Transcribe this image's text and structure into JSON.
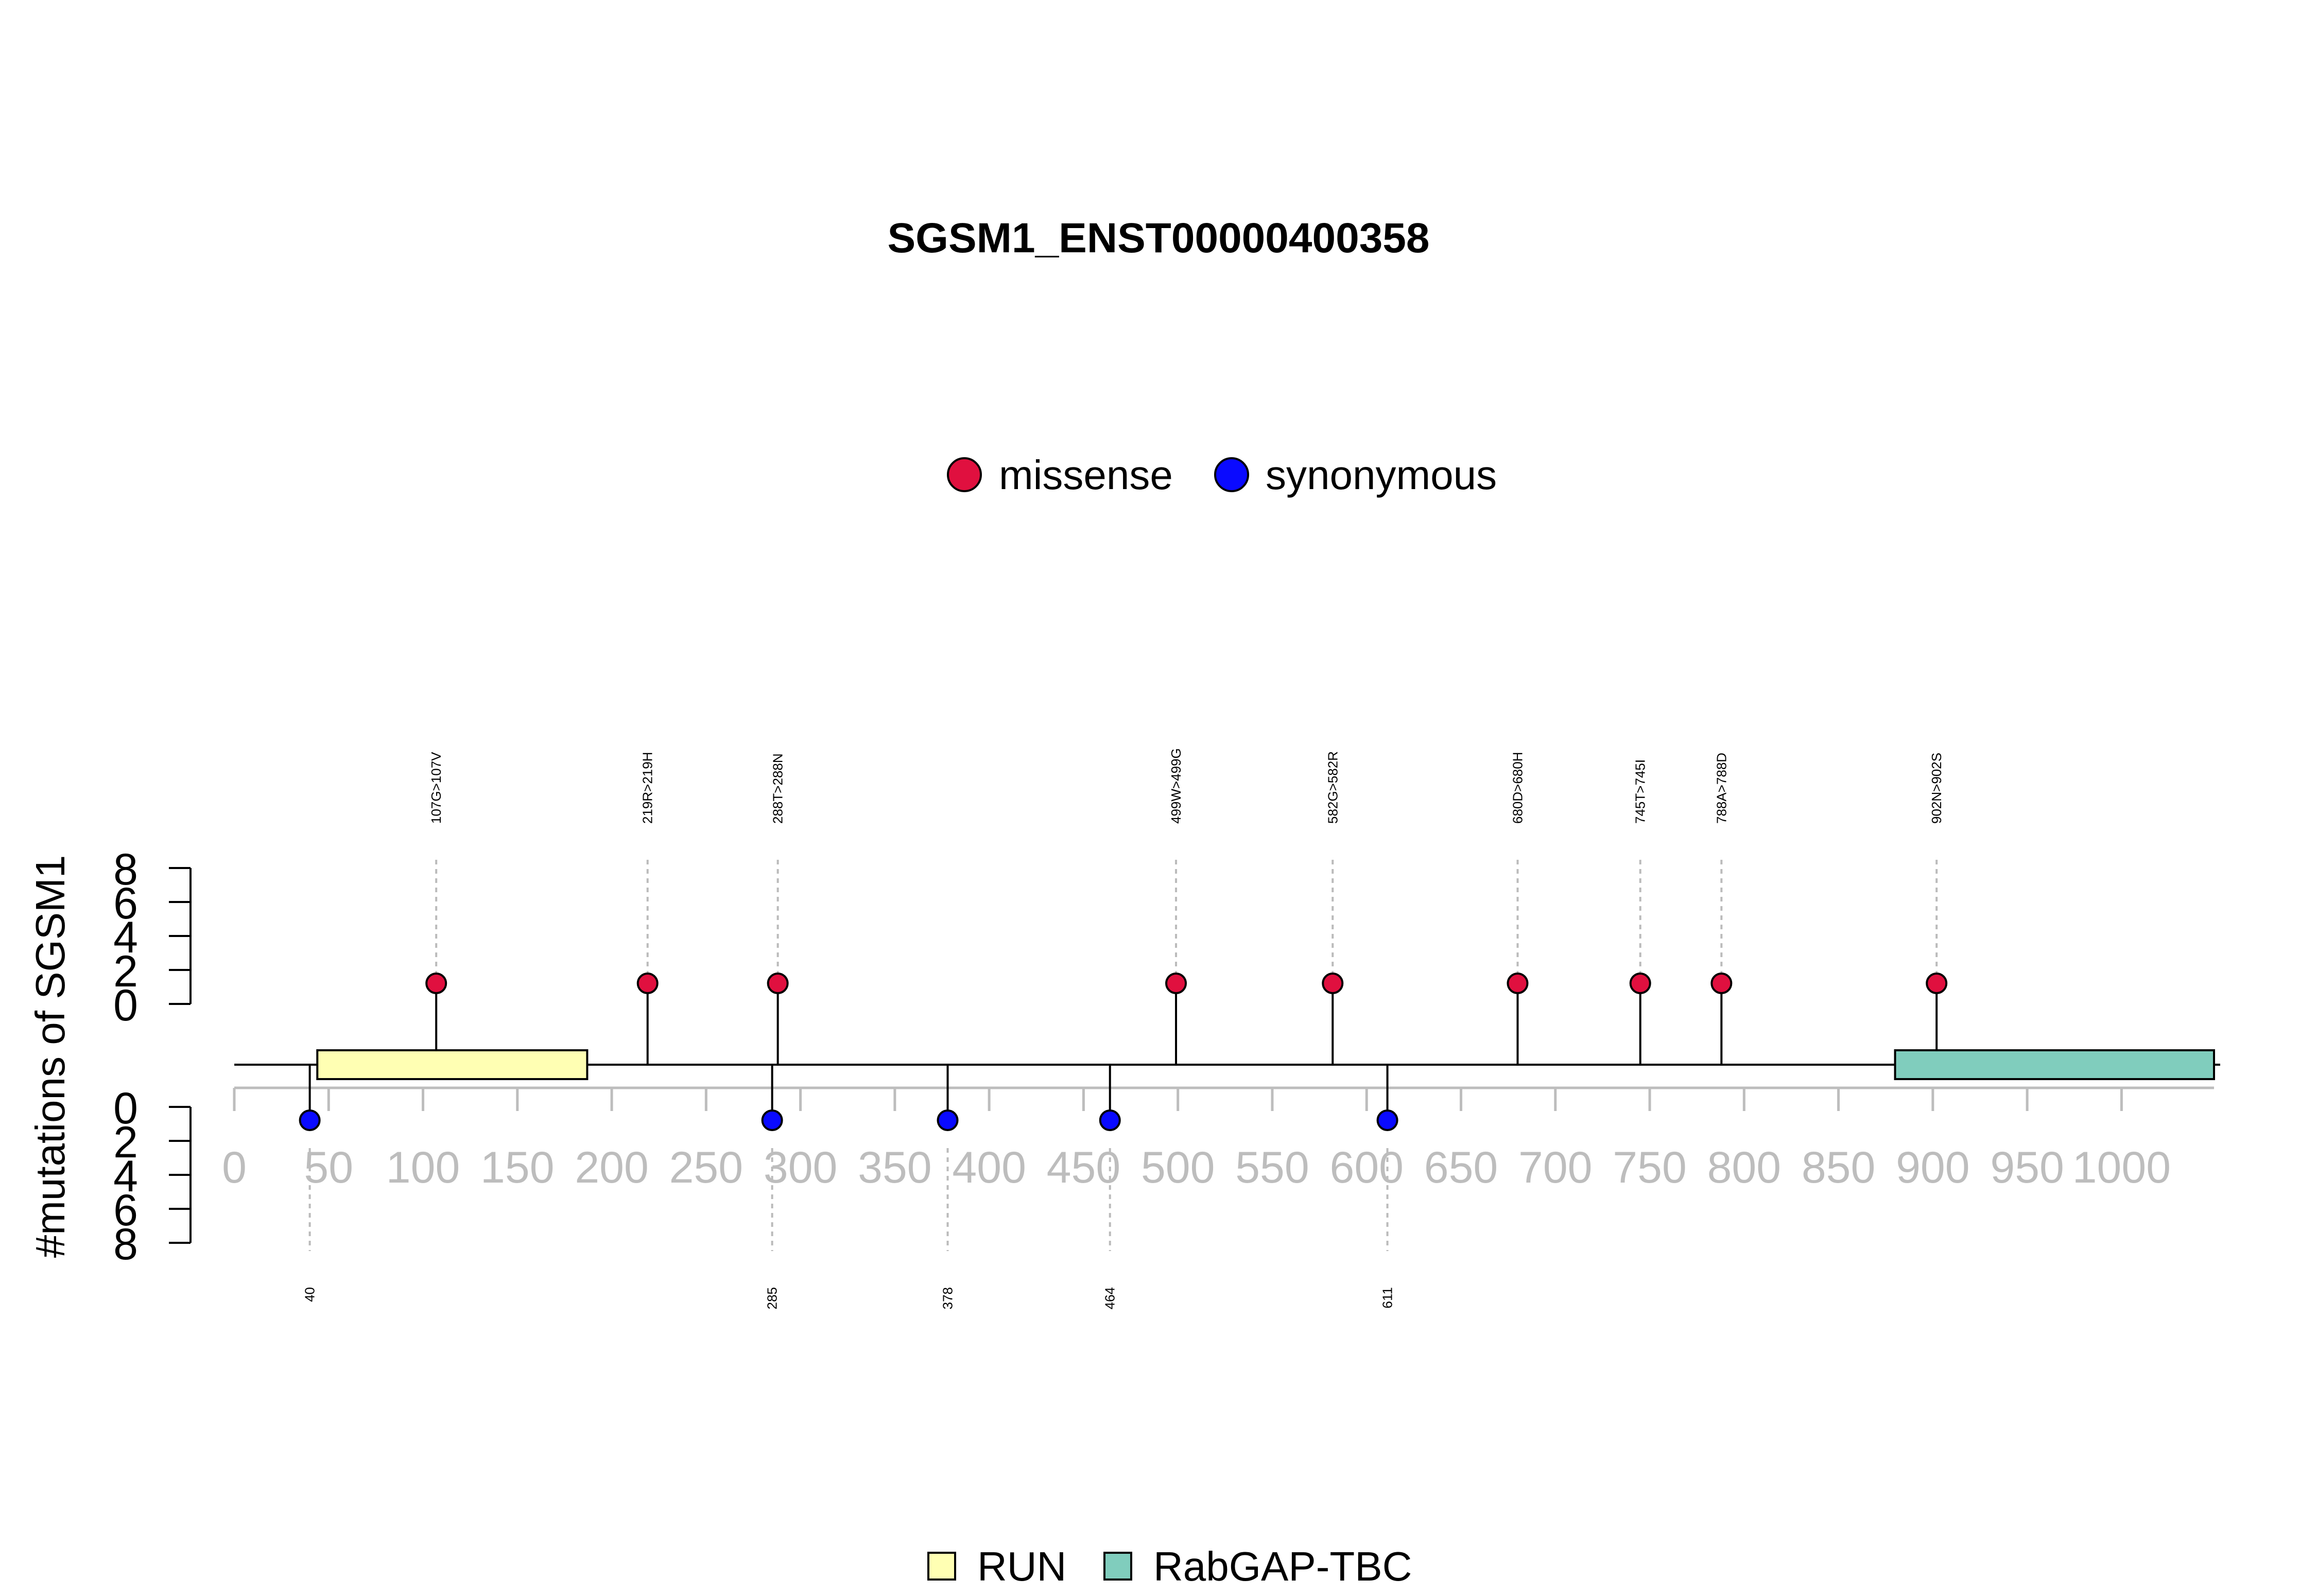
{
  "chart_data": {
    "type": "lollipop",
    "title": "SGSM1_ENST00000400358",
    "ylabel": "#mutations of SGSM1",
    "xlim": [
      0,
      1049
    ],
    "x_ticks": [
      "0",
      "50",
      "100",
      "150",
      "200",
      "250",
      "300",
      "350",
      "400",
      "450",
      "500",
      "550",
      "600",
      "650",
      "700",
      "750",
      "800",
      "850",
      "900",
      "950",
      "1000"
    ],
    "y_ticks_upper": [
      "8",
      "6",
      "4",
      "2",
      "0"
    ],
    "y_ticks_lower": [
      "0",
      "2",
      "4",
      "6",
      "8"
    ],
    "legend_mutation": [
      {
        "name": "missense",
        "color": "#e0103f"
      },
      {
        "name": "synonymous",
        "color": "#0a0aff"
      }
    ],
    "legend_domains": [
      {
        "name": "RUN",
        "color": "#ffffb3"
      },
      {
        "name": "RabGAP-TBC",
        "color": "#80cdbd"
      }
    ],
    "domains": [
      {
        "name": "RUN",
        "start": 44,
        "end": 187
      },
      {
        "name": "RabGAP-TBC",
        "start": 880,
        "end": 1049
      }
    ],
    "missense": [
      {
        "pos": 107,
        "count": 1,
        "label": "107G>107V"
      },
      {
        "pos": 219,
        "count": 1,
        "label": "219R>219H"
      },
      {
        "pos": 288,
        "count": 1,
        "label": "288T>288N"
      },
      {
        "pos": 499,
        "count": 1,
        "label": "499W>499G"
      },
      {
        "pos": 582,
        "count": 1,
        "label": "582G>582R"
      },
      {
        "pos": 680,
        "count": 1,
        "label": "680D>680H"
      },
      {
        "pos": 745,
        "count": 1,
        "label": "745T>745I"
      },
      {
        "pos": 788,
        "count": 1,
        "label": "788A>788D"
      },
      {
        "pos": 902,
        "count": 1,
        "label": "902N>902S"
      }
    ],
    "synonymous": [
      {
        "pos": 40,
        "count": 1,
        "label": "40"
      },
      {
        "pos": 285,
        "count": 1,
        "label": "285"
      },
      {
        "pos": 378,
        "count": 1,
        "label": "378"
      },
      {
        "pos": 464,
        "count": 1,
        "label": "464"
      },
      {
        "pos": 611,
        "count": 1,
        "label": "611"
      }
    ]
  }
}
